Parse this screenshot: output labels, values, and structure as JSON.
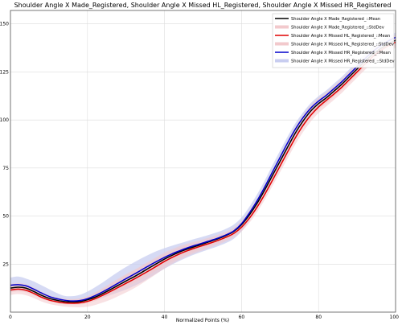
{
  "chart_data": {
    "type": "line",
    "title": "Shoulder Angle X Made_Registered, Shoulder Angle X Missed HL_Registered, Shoulder Angle X Missed HR_Registered",
    "xlabel": "Normalized Points (%)",
    "ylabel": "",
    "xlim": [
      0,
      100
    ],
    "ylim": [
      0,
      157
    ],
    "xticks": [
      0,
      20,
      40,
      60,
      80,
      100
    ],
    "yticks": [
      25,
      50,
      75,
      100,
      125,
      150
    ],
    "grid": true,
    "legend_position": "top-right",
    "x": [
      0,
      2,
      4,
      6,
      8,
      10,
      12,
      14,
      16,
      18,
      20,
      22,
      24,
      26,
      28,
      30,
      32,
      34,
      36,
      38,
      40,
      42,
      44,
      46,
      48,
      50,
      52,
      54,
      56,
      58,
      60,
      62,
      64,
      66,
      68,
      70,
      72,
      74,
      76,
      78,
      80,
      82,
      84,
      86,
      88,
      90,
      92,
      94,
      96,
      98,
      100
    ],
    "series": [
      {
        "name": "Shoulder Angle X Made_Registered_::Mean",
        "color": "#000000",
        "std_name": "Shoulder Angle X Made_Registered_::StdDev",
        "std_color": "#f2c9cc",
        "values": [
          12.5,
          13,
          12.5,
          10.8,
          8.8,
          7.2,
          6.2,
          5.5,
          5.3,
          5.5,
          6.4,
          7.8,
          9.7,
          11.8,
          14,
          16.2,
          18.3,
          20.6,
          23,
          25.3,
          27.6,
          29.6,
          31.4,
          32.9,
          34.2,
          35.5,
          36.9,
          38.3,
          39.9,
          42,
          45.5,
          50.5,
          56.5,
          63.5,
          71,
          78.5,
          86,
          93.3,
          99.5,
          104.7,
          108.5,
          111.5,
          115,
          118.5,
          122.5,
          126.5,
          130.5,
          134,
          137,
          139.5,
          141.5
        ],
        "std": [
          2.2,
          2.2,
          2.2,
          2,
          1.8,
          1.6,
          1.5,
          1.5,
          1.5,
          1.6,
          1.8,
          2,
          2.3,
          2.6,
          2.9,
          3.1,
          3.3,
          3.5,
          3.5,
          3.5,
          3.4,
          3.2,
          3,
          2.8,
          2.6,
          2.4,
          2.2,
          2.1,
          2,
          2,
          2.1,
          2.2,
          2.4,
          2.6,
          2.8,
          3,
          3.1,
          3.2,
          3.2,
          3.1,
          3,
          2.9,
          2.9,
          2.9,
          2.9,
          2.9,
          2.9,
          2.9,
          2.9,
          2.9,
          2.9
        ]
      },
      {
        "name": "Shoulder Angle X Missed HL_Registered_::Mean",
        "color": "#e00000",
        "std_name": "Shoulder Angle X Missed HL_Registered_::StdDev",
        "std_color": "#f2c9cc",
        "values": [
          11.5,
          12,
          11.4,
          9.8,
          7.8,
          6.3,
          5.4,
          4.8,
          4.6,
          4.8,
          5.6,
          7,
          8.8,
          10.8,
          12.9,
          15,
          17.1,
          19.3,
          21.6,
          24,
          26.4,
          28.5,
          30.4,
          32,
          33.4,
          34.7,
          36,
          37.4,
          39,
          41,
          44.2,
          48.8,
          54.5,
          61.2,
          68.5,
          76,
          83.5,
          90.8,
          97.2,
          102.5,
          106.8,
          110.2,
          113.5,
          117,
          121,
          125,
          129,
          132.8,
          136,
          138.5,
          140.5
        ],
        "std": [
          2.6,
          2.6,
          2.6,
          2.4,
          2.2,
          2,
          1.9,
          1.9,
          2,
          2.3,
          2.8,
          3.3,
          3.8,
          4.3,
          4.6,
          4.8,
          4.8,
          4.6,
          4.3,
          4,
          3.7,
          3.4,
          3.1,
          2.9,
          2.7,
          2.5,
          2.3,
          2.2,
          2.1,
          2.1,
          2.2,
          2.4,
          2.6,
          2.8,
          3,
          3.2,
          3.3,
          3.4,
          3.4,
          3.3,
          3.2,
          3.1,
          3,
          3,
          3,
          3,
          3,
          3,
          3,
          3,
          3
        ]
      },
      {
        "name": "Shoulder Angle X Missed HR_Registered_::Mean",
        "color": "#0000cc",
        "std_name": "Shoulder Angle X Missed HR_Registered_::StdDev",
        "std_color": "#c8cdf0",
        "values": [
          14,
          14.3,
          13.7,
          12,
          10,
          8.2,
          7,
          6.2,
          5.8,
          6,
          7,
          8.6,
          10.6,
          12.8,
          15.1,
          17.4,
          19.6,
          21.9,
          24.2,
          26.4,
          28.5,
          30.4,
          32,
          33.5,
          34.8,
          36,
          37.3,
          38.6,
          40.2,
          42.3,
          46,
          51.5,
          57.8,
          65,
          72.8,
          80.5,
          88.2,
          95.3,
          101.3,
          106.2,
          109.8,
          112.8,
          116.3,
          119.8,
          123.8,
          127.8,
          131.8,
          135.5,
          138.5,
          141,
          143
        ]
      }
    ],
    "hr_std_upper": [
      18,
      18.5,
      17.5,
      16,
      14,
      12,
      10,
      8.5,
      8.3,
      9,
      10.7,
      13,
      15.5,
      18.3,
      21,
      23.5,
      25.8,
      28,
      30,
      31.8,
      33.3,
      34.6,
      35.8,
      37,
      38.2,
      39.3,
      40.5,
      41.8,
      43.4,
      45.6,
      49.2,
      54.7,
      61.1,
      68.4,
      76.3,
      84,
      91.5,
      98.3,
      104,
      108.8,
      112.4,
      115.4,
      118.9,
      122.4,
      126.4,
      130.4,
      134.4,
      138,
      141,
      143.5,
      145.5
    ],
    "hr_std_lower": [
      11,
      11.3,
      10.8,
      9.6,
      7.8,
      6.2,
      5.2,
      4.8,
      4.8,
      5.1,
      5.8,
      6.6,
      7.6,
      8.9,
      10.3,
      11.8,
      13.5,
      15.5,
      17.8,
      20.2,
      22.6,
      24.8,
      26.8,
      28.6,
      30.2,
      31.6,
      33,
      34.4,
      36,
      38.2,
      42,
      47.6,
      54,
      61.2,
      69,
      76.8,
      84.5,
      91.8,
      97.8,
      102.8,
      106.6,
      109.8,
      113.3,
      116.8,
      120.8,
      124.8,
      128.8,
      132.5,
      135.5,
      138,
      140
    ]
  }
}
